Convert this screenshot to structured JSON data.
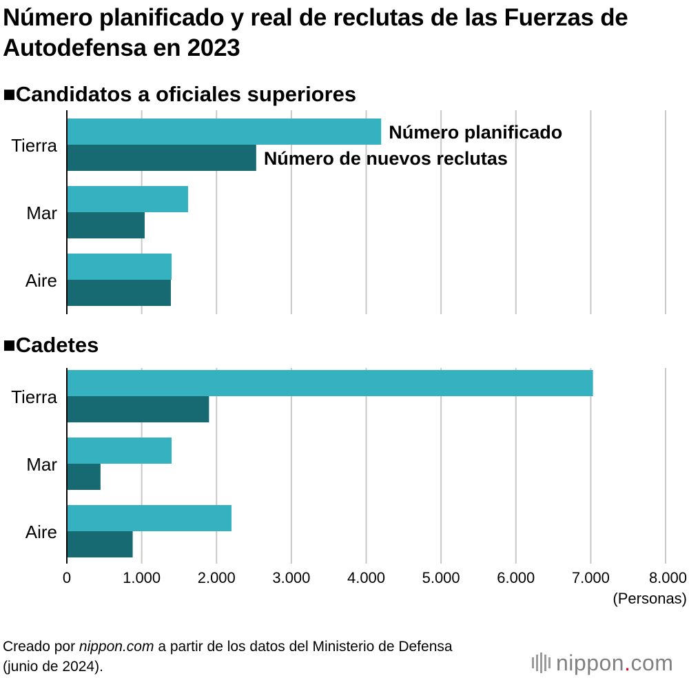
{
  "title": "Número planificado y real de reclutas de las Fuerzas de Autodefensa en 2023",
  "note": {
    "prefix": "Creado por ",
    "site": "nippon.com",
    "suffix": " a partir de los datos del Ministerio de Defensa (junio de 2024)."
  },
  "logo": {
    "name": "nippon",
    "dot": ".",
    "tld": "com"
  },
  "colors": {
    "planned": "#36b1c0",
    "actual": "#186a72",
    "grid": "#c8c8c8",
    "axis": "#000000"
  },
  "chart_data": {
    "type": "bar",
    "orientation": "horizontal",
    "xlim": [
      0,
      8000
    ],
    "xticks": [
      0,
      1000,
      2000,
      3000,
      4000,
      5000,
      6000,
      7000,
      8000
    ],
    "xtick_labels": [
      "0",
      "1.000",
      "2.000",
      "3.000",
      "4.000",
      "5.000",
      "6.000",
      "7.000",
      "8.000"
    ],
    "x_unit_label": "(Personas)",
    "grid": true,
    "legend": [
      "Número planificado",
      "Número de nuevos reclutas"
    ],
    "panels": [
      {
        "title": "■Candidatos a oficiales superiores",
        "categories": [
          "Tierra",
          "Mar",
          "Aire"
        ],
        "series": [
          {
            "name": "Número planificado",
            "values": [
              4200,
              1620,
              1400
            ]
          },
          {
            "name": "Número de nuevos reclutas",
            "values": [
              2530,
              1040,
              1390
            ]
          }
        ]
      },
      {
        "title": "■Cadetes",
        "categories": [
          "Tierra",
          "Mar",
          "Aire"
        ],
        "series": [
          {
            "name": "Número planificado",
            "values": [
              7030,
              1400,
              2200
            ]
          },
          {
            "name": "Número de nuevos reclutas",
            "values": [
              1900,
              450,
              880
            ]
          }
        ]
      }
    ]
  }
}
